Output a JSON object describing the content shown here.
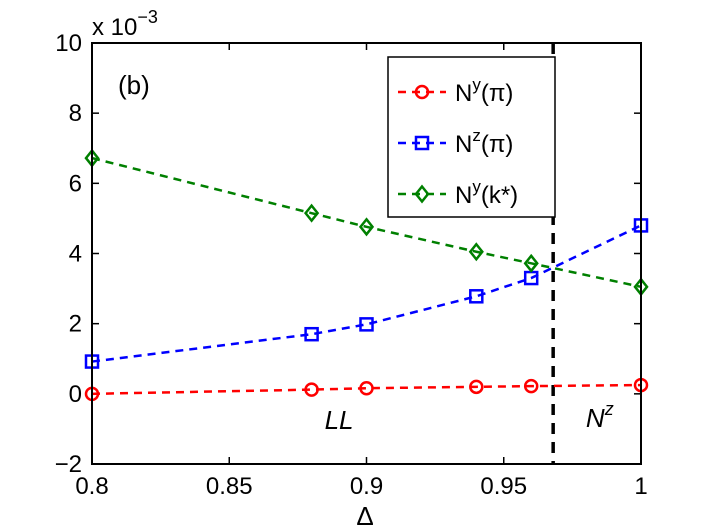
{
  "chart_data": {
    "type": "line",
    "panel_label": "(b)",
    "xlabel": "Δ",
    "ylabel": "",
    "scale_note": {
      "base": "x 10",
      "exponent": "−3"
    },
    "xlim": [
      0.8,
      1.0
    ],
    "ylim": [
      -2,
      10
    ],
    "xticks": [
      0.8,
      0.85,
      0.9,
      0.95,
      1.0
    ],
    "xtick_labels": [
      "0.8",
      "0.85",
      "0.9",
      "0.95",
      "1"
    ],
    "yticks": [
      -2,
      0,
      2,
      4,
      6,
      8,
      10
    ],
    "ytick_labels": [
      "−2",
      "0",
      "2",
      "4",
      "6",
      "8",
      "10"
    ],
    "grid": false,
    "legend_position": "top-right",
    "series": [
      {
        "name": "N^y(π)",
        "label_main": "N",
        "label_sup": "y",
        "label_rest": "(π)",
        "color": "#ff0000",
        "marker": "circle",
        "x": [
          0.8,
          0.88,
          0.9,
          0.94,
          0.96,
          1.0
        ],
        "y": [
          0.0,
          0.12,
          0.16,
          0.2,
          0.22,
          0.25
        ]
      },
      {
        "name": "N^z(π)",
        "label_main": "N",
        "label_sup": "z",
        "label_rest": "(π)",
        "color": "#0000ff",
        "marker": "square",
        "x": [
          0.8,
          0.88,
          0.9,
          0.94,
          0.96,
          1.0
        ],
        "y": [
          0.92,
          1.7,
          1.98,
          2.78,
          3.3,
          4.8
        ]
      },
      {
        "name": "N^y(k*)",
        "label_main": "N",
        "label_sup": "y",
        "label_rest": "(k*)",
        "color": "#008000",
        "marker": "diamond",
        "x": [
          0.8,
          0.88,
          0.9,
          0.94,
          0.96,
          1.0
        ],
        "y": [
          6.72,
          5.15,
          4.76,
          4.05,
          3.72,
          3.05
        ]
      }
    ],
    "vline": {
      "x": 0.968,
      "color": "#000000",
      "style": "dashed"
    },
    "annotations": [
      {
        "text": "LL",
        "x": 0.89,
        "y": -1.0,
        "italic": true
      },
      {
        "base": "N",
        "sup": "z",
        "x": 0.985,
        "y": -0.95,
        "italic": true
      }
    ]
  }
}
